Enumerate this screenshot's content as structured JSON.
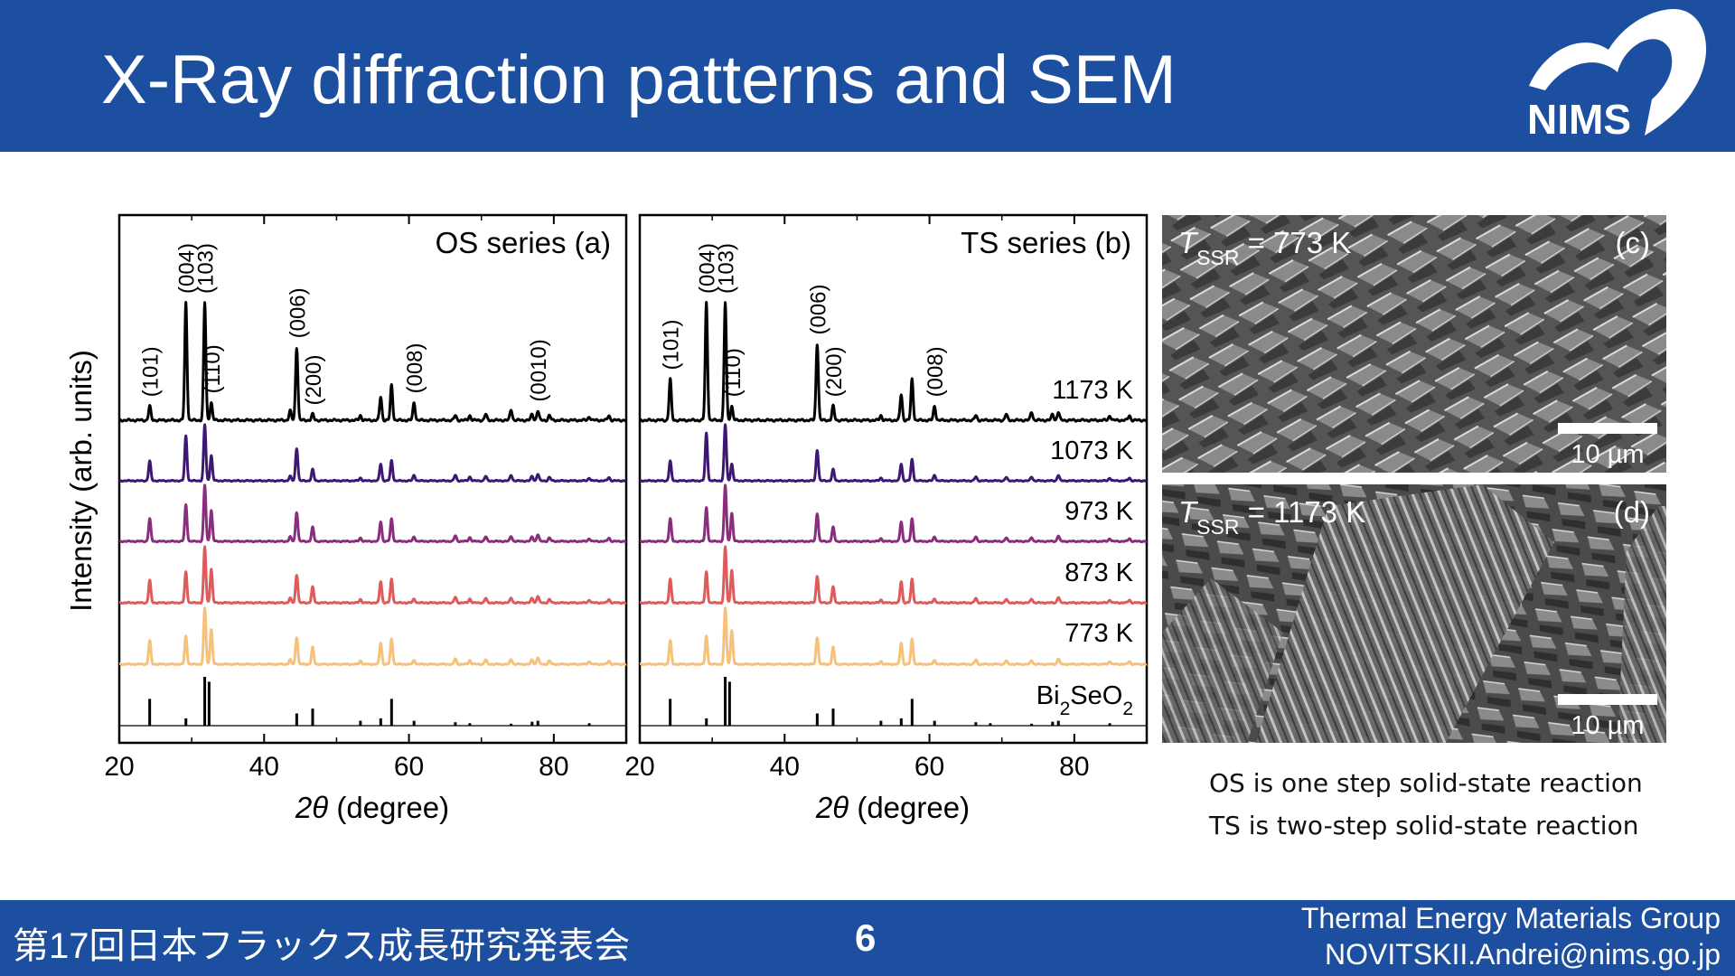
{
  "slide": {
    "title": "X-Ray diffraction patterns and SEM",
    "logo_text": "NIMS",
    "footer": {
      "conference": "第17回日本フラックス成長研究発表会",
      "page_number": "6",
      "group": "Thermal Energy Materials Group",
      "email": "NOVITSKII.Andrei@nims.go.jp"
    },
    "notes": [
      "OS is one step solid-state reaction",
      "TS is two-step solid-state reaction"
    ]
  },
  "figure": {
    "y_label": "Intensity (arb. units)",
    "x_label_italic": "2θ",
    "x_label_rest": " (degree)",
    "panel_a_label": "OS series (a)",
    "panel_b_label": "TS series (b)",
    "temperatures": [
      "1173 K",
      "1073 K",
      "973 K",
      "873 K",
      "773 K"
    ],
    "reference_label": "Bi2SeO2",
    "sem_c": {
      "t_symbol": "T",
      "t_sub": "SSR",
      "t_value": " = 773 K",
      "label": "(c)",
      "scale": "10 µm"
    },
    "sem_d": {
      "t_symbol": "T",
      "t_sub": "SSR",
      "t_value": " = 1173 K",
      "label": "(d)",
      "scale": "10 µm"
    },
    "series_colors": [
      "#000000",
      "#3d1873",
      "#8a2d7d",
      "#df5a5a",
      "#f5c27c"
    ]
  },
  "chart_data": [
    {
      "type": "line",
      "title": "OS series (a)",
      "xlabel": "2θ (degree)",
      "ylabel": "Intensity (arb. units)",
      "xlim": [
        20,
        90
      ],
      "xticks": [
        20,
        40,
        60,
        80
      ],
      "series": [
        {
          "name": "1173 K",
          "color": "#000000",
          "peaks": [
            [
              24.2,
              0.12
            ],
            [
              29.2,
              1.0
            ],
            [
              31.8,
              1.0
            ],
            [
              32.7,
              0.15
            ],
            [
              43.6,
              0.08
            ],
            [
              44.5,
              0.62
            ],
            [
              46.7,
              0.05
            ],
            [
              53.3,
              0.04
            ],
            [
              56.1,
              0.2
            ],
            [
              57.6,
              0.3
            ],
            [
              60.7,
              0.15
            ],
            [
              66.4,
              0.04
            ],
            [
              68.4,
              0.04
            ],
            [
              70.6,
              0.05
            ],
            [
              74.1,
              0.09
            ],
            [
              77.0,
              0.05
            ],
            [
              77.8,
              0.08
            ],
            [
              79.4,
              0.04
            ],
            [
              84.9,
              0.03
            ],
            [
              87.6,
              0.04
            ]
          ]
        },
        {
          "name": "1073 K",
          "color": "#3d1873",
          "peaks": [
            [
              24.2,
              0.35
            ],
            [
              29.2,
              0.8
            ],
            [
              31.8,
              1.0
            ],
            [
              32.7,
              0.45
            ],
            [
              43.6,
              0.08
            ],
            [
              44.5,
              0.58
            ],
            [
              46.7,
              0.2
            ],
            [
              53.3,
              0.05
            ],
            [
              56.1,
              0.3
            ],
            [
              57.6,
              0.36
            ],
            [
              60.7,
              0.1
            ],
            [
              66.4,
              0.1
            ],
            [
              68.4,
              0.07
            ],
            [
              70.6,
              0.08
            ],
            [
              74.1,
              0.1
            ],
            [
              77.0,
              0.08
            ],
            [
              77.8,
              0.12
            ],
            [
              79.4,
              0.06
            ],
            [
              84.9,
              0.05
            ],
            [
              87.6,
              0.06
            ]
          ]
        },
        {
          "name": "973 K",
          "color": "#8a2d7d",
          "peaks": [
            [
              24.2,
              0.4
            ],
            [
              29.2,
              0.65
            ],
            [
              31.8,
              1.0
            ],
            [
              32.7,
              0.55
            ],
            [
              43.6,
              0.08
            ],
            [
              44.5,
              0.52
            ],
            [
              46.7,
              0.25
            ],
            [
              53.3,
              0.06
            ],
            [
              56.1,
              0.35
            ],
            [
              57.6,
              0.4
            ],
            [
              60.7,
              0.08
            ],
            [
              66.4,
              0.1
            ],
            [
              68.4,
              0.07
            ],
            [
              70.6,
              0.08
            ],
            [
              74.1,
              0.09
            ],
            [
              77.0,
              0.08
            ],
            [
              77.8,
              0.12
            ],
            [
              79.4,
              0.06
            ],
            [
              84.9,
              0.05
            ],
            [
              87.6,
              0.06
            ]
          ]
        },
        {
          "name": "873 K",
          "color": "#df5a5a",
          "peaks": [
            [
              24.2,
              0.4
            ],
            [
              29.2,
              0.55
            ],
            [
              31.8,
              1.0
            ],
            [
              32.7,
              0.6
            ],
            [
              43.6,
              0.08
            ],
            [
              44.5,
              0.5
            ],
            [
              46.7,
              0.28
            ],
            [
              53.3,
              0.06
            ],
            [
              56.1,
              0.38
            ],
            [
              57.6,
              0.42
            ],
            [
              60.7,
              0.07
            ],
            [
              66.4,
              0.1
            ],
            [
              68.4,
              0.07
            ],
            [
              70.6,
              0.08
            ],
            [
              74.1,
              0.09
            ],
            [
              77.0,
              0.08
            ],
            [
              77.8,
              0.12
            ],
            [
              79.4,
              0.06
            ],
            [
              84.9,
              0.05
            ],
            [
              87.6,
              0.06
            ]
          ]
        },
        {
          "name": "773 K",
          "color": "#f5c27c",
          "peaks": [
            [
              24.2,
              0.42
            ],
            [
              29.2,
              0.5
            ],
            [
              31.8,
              1.0
            ],
            [
              32.7,
              0.62
            ],
            [
              43.6,
              0.08
            ],
            [
              44.5,
              0.48
            ],
            [
              46.7,
              0.3
            ],
            [
              53.3,
              0.06
            ],
            [
              56.1,
              0.38
            ],
            [
              57.6,
              0.45
            ],
            [
              60.7,
              0.07
            ],
            [
              66.4,
              0.1
            ],
            [
              68.4,
              0.07
            ],
            [
              70.6,
              0.08
            ],
            [
              74.1,
              0.09
            ],
            [
              77.0,
              0.08
            ],
            [
              77.8,
              0.12
            ],
            [
              79.4,
              0.06
            ],
            [
              84.9,
              0.05
            ],
            [
              87.6,
              0.06
            ]
          ]
        },
        {
          "name": "Bi2SeO2",
          "color": "#000000",
          "peaks": [
            [
              24.2,
              0.55
            ],
            [
              29.2,
              0.15
            ],
            [
              31.8,
              1.0
            ],
            [
              32.4,
              0.9
            ],
            [
              44.5,
              0.25
            ],
            [
              46.7,
              0.35
            ],
            [
              53.3,
              0.1
            ],
            [
              56.1,
              0.15
            ],
            [
              57.6,
              0.55
            ],
            [
              60.7,
              0.1
            ],
            [
              66.4,
              0.07
            ],
            [
              68.4,
              0.05
            ],
            [
              74.1,
              0.04
            ],
            [
              77.0,
              0.08
            ],
            [
              77.8,
              0.1
            ],
            [
              84.9,
              0.05
            ]
          ]
        }
      ],
      "peak_labels": [
        {
          "text": "(101)",
          "x": 24.2
        },
        {
          "text": "(004)",
          "x": 29.2
        },
        {
          "text": "(103)",
          "x": 31.8
        },
        {
          "text": "(110)",
          "x": 32.7
        },
        {
          "text": "(006)",
          "x": 44.5
        },
        {
          "text": "(200)",
          "x": 46.7
        },
        {
          "text": "(008)",
          "x": 60.7
        },
        {
          "text": "(0010)",
          "x": 77.8
        }
      ]
    },
    {
      "type": "line",
      "title": "TS series (b)",
      "xlabel": "2θ (degree)",
      "ylabel": "",
      "xlim": [
        20,
        90
      ],
      "xticks": [
        20,
        40,
        60,
        80
      ],
      "series": [
        {
          "name": "1173 K",
          "color": "#000000",
          "peaks": [
            [
              24.2,
              0.35
            ],
            [
              29.2,
              1.0
            ],
            [
              31.8,
              1.0
            ],
            [
              32.7,
              0.12
            ],
            [
              44.5,
              0.65
            ],
            [
              46.7,
              0.12
            ],
            [
              53.3,
              0.04
            ],
            [
              56.1,
              0.22
            ],
            [
              57.6,
              0.35
            ],
            [
              60.7,
              0.12
            ],
            [
              66.4,
              0.04
            ],
            [
              70.6,
              0.05
            ],
            [
              74.1,
              0.07
            ],
            [
              77.0,
              0.05
            ],
            [
              77.8,
              0.07
            ],
            [
              84.9,
              0.04
            ],
            [
              87.6,
              0.04
            ]
          ]
        },
        {
          "name": "1073 K",
          "color": "#3d1873",
          "peaks": [
            [
              24.2,
              0.35
            ],
            [
              29.2,
              0.85
            ],
            [
              31.8,
              1.0
            ],
            [
              32.7,
              0.3
            ],
            [
              44.5,
              0.55
            ],
            [
              46.7,
              0.2
            ],
            [
              53.3,
              0.05
            ],
            [
              56.1,
              0.3
            ],
            [
              57.6,
              0.38
            ],
            [
              60.7,
              0.1
            ],
            [
              66.4,
              0.07
            ],
            [
              70.6,
              0.06
            ],
            [
              74.1,
              0.07
            ],
            [
              77.8,
              0.1
            ],
            [
              84.9,
              0.05
            ],
            [
              87.6,
              0.05
            ]
          ]
        },
        {
          "name": "973 K",
          "color": "#8a2d7d",
          "peaks": [
            [
              24.2,
              0.4
            ],
            [
              29.2,
              0.6
            ],
            [
              31.8,
              1.0
            ],
            [
              32.7,
              0.5
            ],
            [
              44.5,
              0.5
            ],
            [
              46.7,
              0.25
            ],
            [
              53.3,
              0.05
            ],
            [
              56.1,
              0.35
            ],
            [
              57.6,
              0.4
            ],
            [
              60.7,
              0.08
            ],
            [
              66.4,
              0.08
            ],
            [
              70.6,
              0.06
            ],
            [
              74.1,
              0.07
            ],
            [
              77.8,
              0.1
            ],
            [
              84.9,
              0.05
            ],
            [
              87.6,
              0.05
            ]
          ]
        },
        {
          "name": "873 K",
          "color": "#df5a5a",
          "peaks": [
            [
              24.2,
              0.42
            ],
            [
              29.2,
              0.55
            ],
            [
              31.8,
              1.0
            ],
            [
              32.7,
              0.58
            ],
            [
              44.5,
              0.48
            ],
            [
              46.7,
              0.28
            ],
            [
              53.3,
              0.05
            ],
            [
              56.1,
              0.38
            ],
            [
              57.6,
              0.42
            ],
            [
              60.7,
              0.07
            ],
            [
              66.4,
              0.08
            ],
            [
              70.6,
              0.06
            ],
            [
              74.1,
              0.07
            ],
            [
              77.8,
              0.1
            ],
            [
              84.9,
              0.05
            ],
            [
              87.6,
              0.05
            ]
          ]
        },
        {
          "name": "773 K",
          "color": "#f5c27c",
          "peaks": [
            [
              24.2,
              0.42
            ],
            [
              29.2,
              0.5
            ],
            [
              31.8,
              1.0
            ],
            [
              32.7,
              0.6
            ],
            [
              44.5,
              0.48
            ],
            [
              46.7,
              0.3
            ],
            [
              53.3,
              0.05
            ],
            [
              56.1,
              0.38
            ],
            [
              57.6,
              0.45
            ],
            [
              60.7,
              0.07
            ],
            [
              66.4,
              0.08
            ],
            [
              70.6,
              0.06
            ],
            [
              74.1,
              0.07
            ],
            [
              77.8,
              0.1
            ],
            [
              84.9,
              0.05
            ],
            [
              87.6,
              0.05
            ]
          ]
        },
        {
          "name": "Bi2SeO2",
          "color": "#000000",
          "peaks": [
            [
              24.2,
              0.55
            ],
            [
              29.2,
              0.15
            ],
            [
              31.8,
              1.0
            ],
            [
              32.4,
              0.9
            ],
            [
              44.5,
              0.25
            ],
            [
              46.7,
              0.35
            ],
            [
              53.3,
              0.1
            ],
            [
              56.1,
              0.15
            ],
            [
              57.6,
              0.55
            ],
            [
              60.7,
              0.1
            ],
            [
              66.4,
              0.07
            ],
            [
              68.4,
              0.05
            ],
            [
              74.1,
              0.04
            ],
            [
              77.0,
              0.08
            ],
            [
              77.8,
              0.1
            ],
            [
              84.9,
              0.05
            ]
          ]
        }
      ],
      "peak_labels": [
        {
          "text": "(101)",
          "x": 24.2
        },
        {
          "text": "(004)",
          "x": 29.2
        },
        {
          "text": "(103)",
          "x": 31.8
        },
        {
          "text": "(110)",
          "x": 32.7
        },
        {
          "text": "(006)",
          "x": 44.5
        },
        {
          "text": "(200)",
          "x": 46.7
        },
        {
          "text": "(008)",
          "x": 60.7
        }
      ]
    }
  ]
}
